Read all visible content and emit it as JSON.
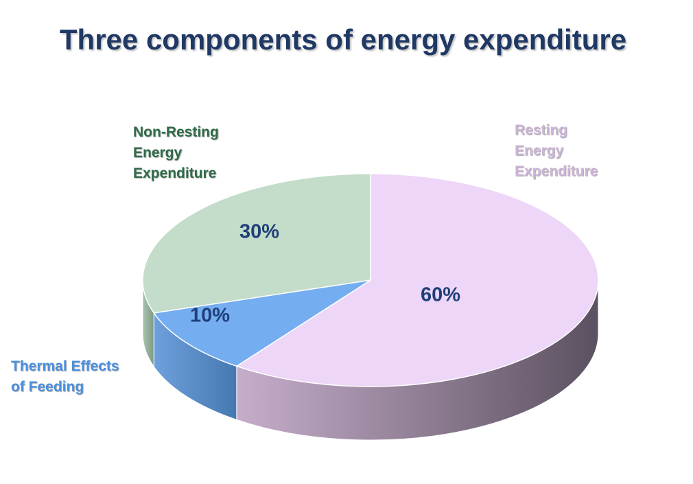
{
  "title": "Three components of energy expenditure",
  "chart_data": {
    "type": "pie",
    "title": "Three components of energy expenditure",
    "slices": [
      {
        "label_lines": [
          "Resting",
          "Energy",
          "Expenditure"
        ],
        "value": 60,
        "data_label": "60%",
        "color": "#edd6f7",
        "side_color_light": "#c6aecb",
        "side_color_dark": "#5b5160",
        "label_color": "#cdb5d8"
      },
      {
        "label_lines": [
          "Thermal Effects",
          "of Feeding"
        ],
        "value": 10,
        "data_label": "10%",
        "color": "#74adf0",
        "side_color_light": "#6ea0dc",
        "side_color_dark": "#4678b0",
        "label_color": "#4a90e2"
      },
      {
        "label_lines": [
          "Non-Resting",
          "Energy",
          "Expenditure"
        ],
        "value": 30,
        "data_label": "30%",
        "color": "#c4dcca",
        "side_color_light": "#a9c3b0",
        "side_color_dark": "#7d9a84",
        "label_color": "#2e6b47"
      }
    ],
    "data_label_color": "#1f3f7a",
    "three_d": true,
    "legend": "none"
  }
}
